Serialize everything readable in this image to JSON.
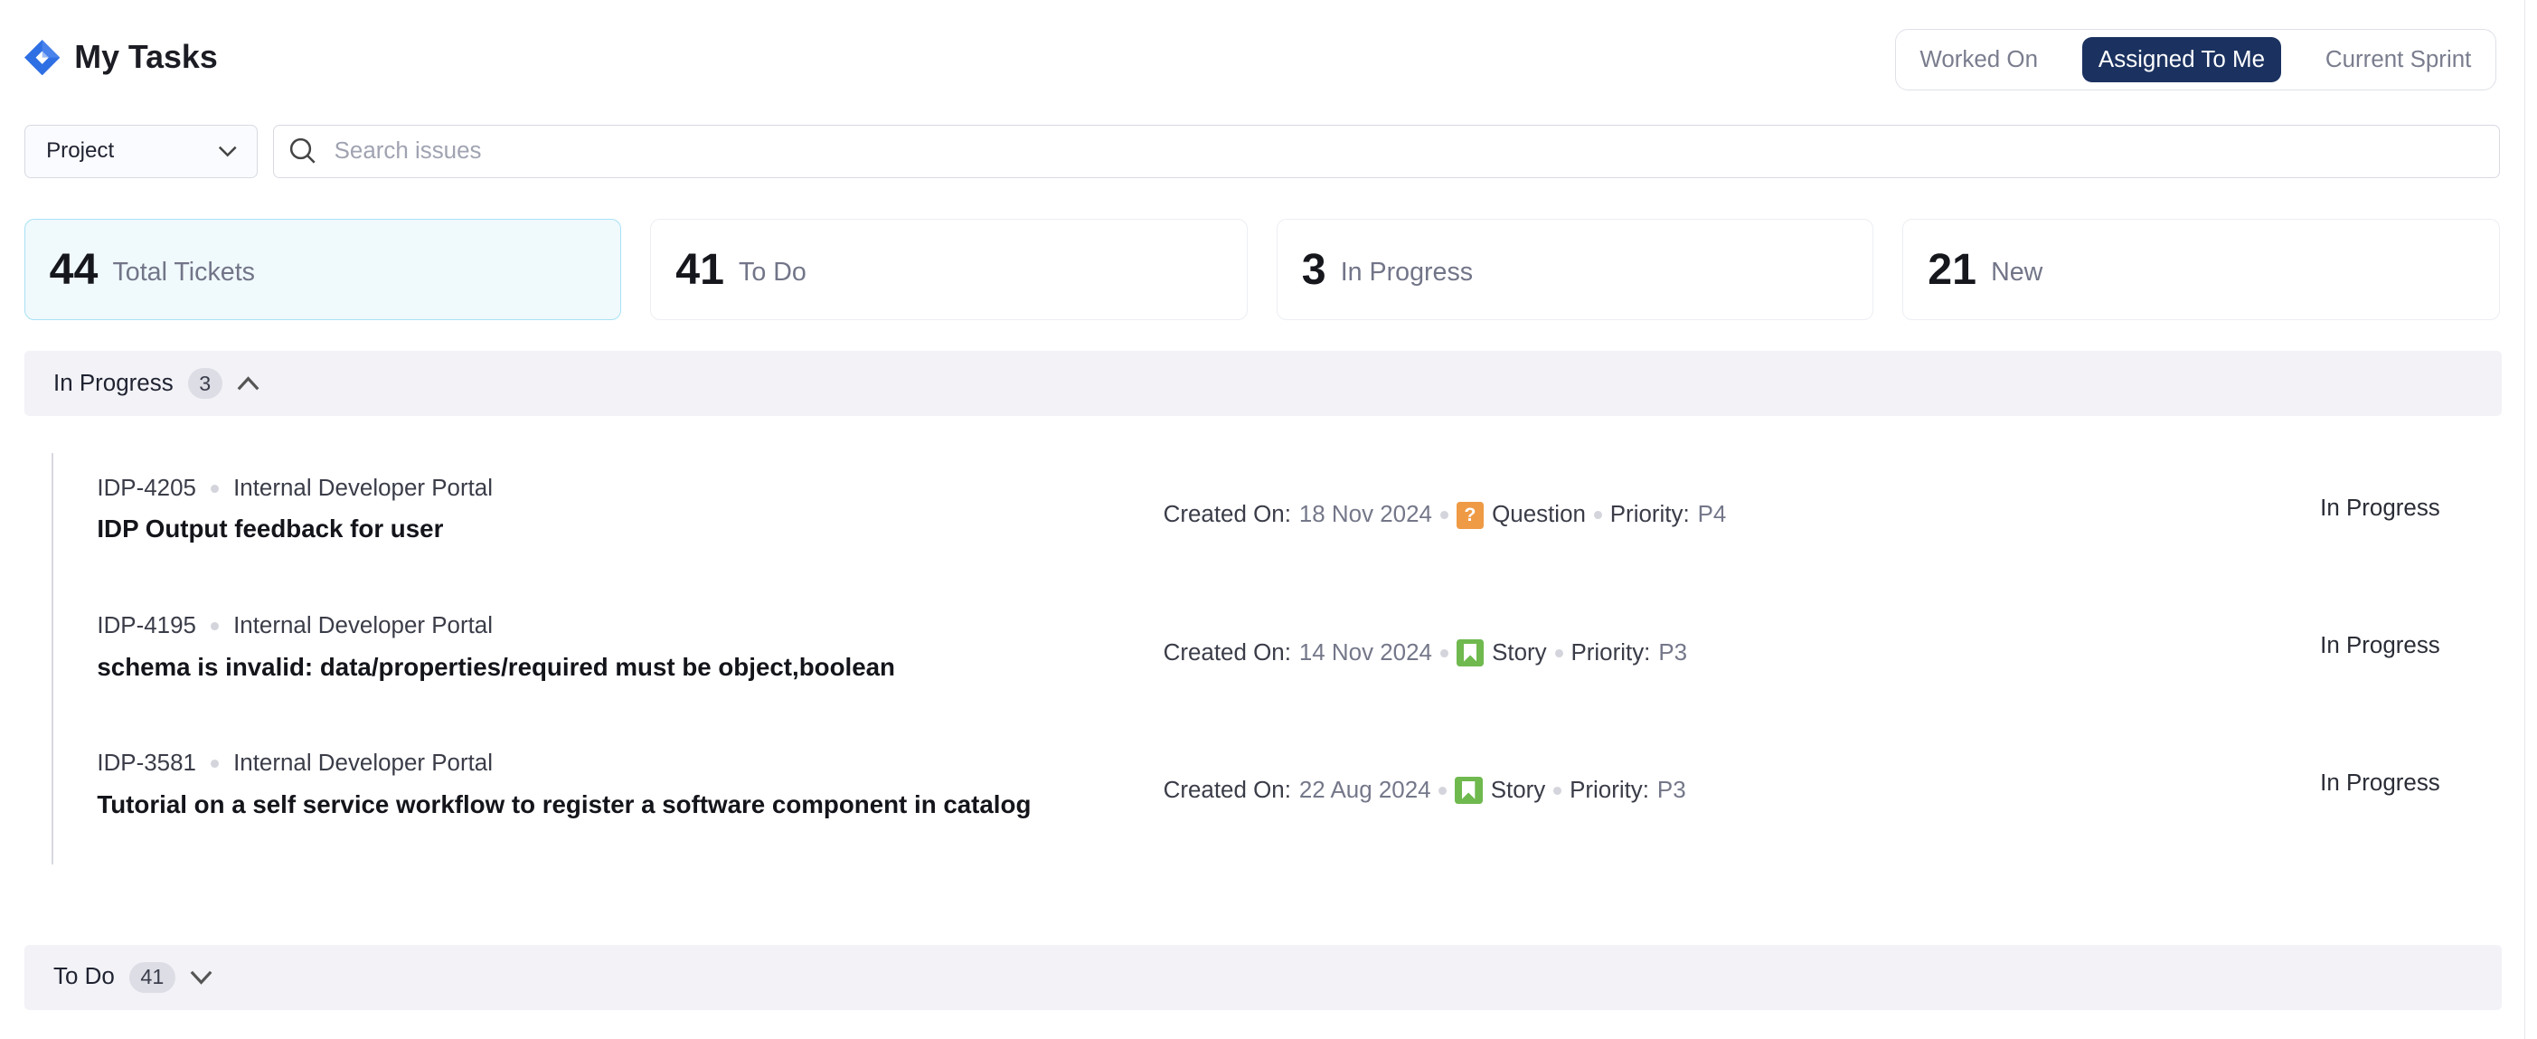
{
  "header": {
    "title": "My Tasks",
    "logo_icon": "jira-diamond-icon",
    "logo_color": "#2f6fe4"
  },
  "view_toggle": {
    "options": [
      "Worked On",
      "Assigned To Me",
      "Current Sprint"
    ],
    "selected": "Assigned To Me"
  },
  "filters": {
    "project_label": "Project",
    "search_placeholder": "Search issues",
    "search_value": ""
  },
  "stats": [
    {
      "value": "44",
      "label": "Total Tickets",
      "selected": true
    },
    {
      "value": "41",
      "label": "To Do"
    },
    {
      "value": "3",
      "label": "In Progress"
    },
    {
      "value": "21",
      "label": "New"
    }
  ],
  "sections": {
    "in_progress": {
      "label": "In Progress",
      "count": "3",
      "expanded": true
    },
    "todo": {
      "label": "To Do",
      "count": "41",
      "expanded": false
    }
  },
  "labels": {
    "created_on": "Created On:",
    "priority": "Priority:"
  },
  "issues": [
    {
      "key": "IDP-4205",
      "project": "Internal Developer Portal",
      "title": "IDP Output feedback for user",
      "created": "18 Nov 2024",
      "type": "Question",
      "type_color": "#ef9a45",
      "priority": "P4",
      "status": "In Progress"
    },
    {
      "key": "IDP-4195",
      "project": "Internal Developer Portal",
      "title": "schema is invalid: data/properties/required must be object,boolean",
      "created": "14 Nov 2024",
      "type": "Story",
      "type_color": "#6fb94f",
      "priority": "P3",
      "status": "In Progress"
    },
    {
      "key": "IDP-3581",
      "project": "Internal Developer Portal",
      "title": "Tutorial on a self service workflow to register a software component in catalog",
      "created": "22 Aug 2024",
      "type": "Story",
      "type_color": "#6fb94f",
      "priority": "P3",
      "status": "In Progress"
    }
  ]
}
